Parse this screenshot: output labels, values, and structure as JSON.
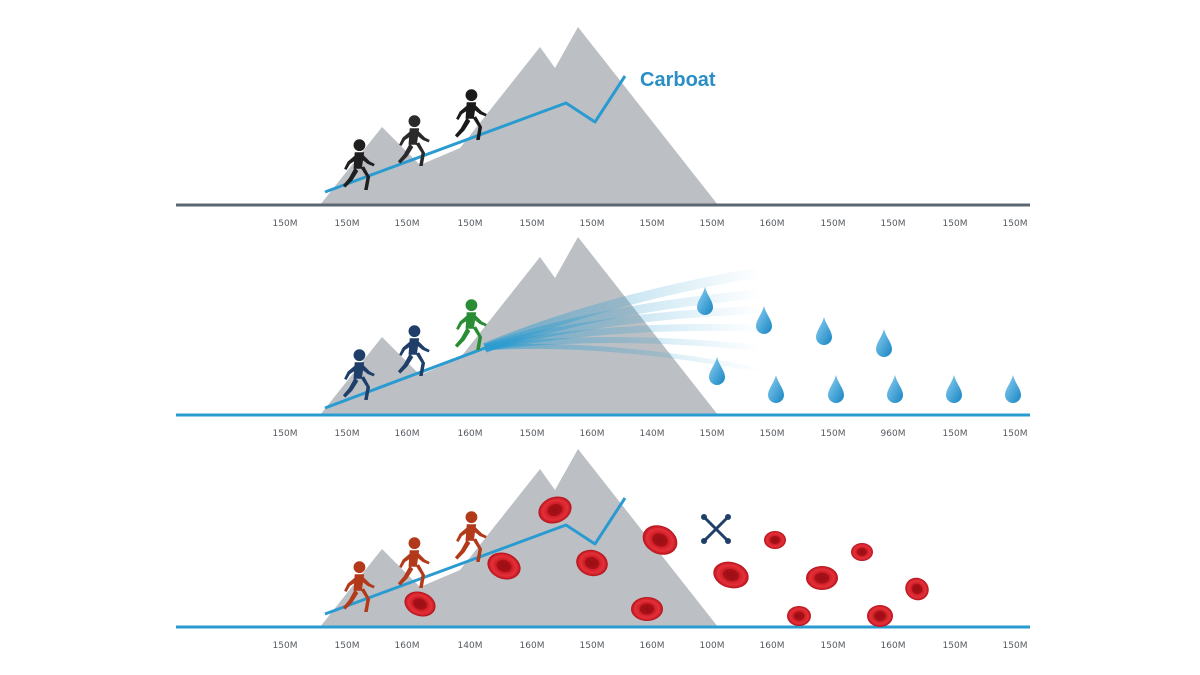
{
  "panels": [
    {
      "id": "carbohydrate",
      "label": "Carboat",
      "runner_colors": [
        "#1f1f1f",
        "#2a2a2a",
        "#1a1a1a"
      ],
      "baseline_color": "#5b6770",
      "tick_labels": [
        "150M",
        "150M",
        "150M",
        "150M",
        "150M",
        "150M",
        "150M",
        "150M",
        "160M",
        "150M",
        "150M",
        "150M",
        "150M"
      ],
      "graphic": "line"
    },
    {
      "id": "hydration",
      "label": "",
      "runner_colors": [
        "#1f3f6a",
        "#1f3f6a",
        "#2a8c34"
      ],
      "baseline_color": "#2a9bd0",
      "tick_labels": [
        "150M",
        "150M",
        "160M",
        "160M",
        "150M",
        "160M",
        "140M",
        "150M",
        "150M",
        "150M",
        "960M",
        "150M",
        "150M"
      ],
      "graphic": "droplets"
    },
    {
      "id": "blood",
      "label": "",
      "runner_colors": [
        "#b23a1a",
        "#b23a1a",
        "#b23a1a"
      ],
      "baseline_color": "#2a9bd0",
      "tick_labels": [
        "150M",
        "150M",
        "160M",
        "140M",
        "160M",
        "150M",
        "160M",
        "100M",
        "160M",
        "150M",
        "160M",
        "150M",
        "150M"
      ],
      "graphic": "blood-cells"
    }
  ],
  "colors": {
    "mountain": "#bcc0c4",
    "line": "#2a9bd0",
    "droplet": "#2e9fd6",
    "blood_cell": "#d01d24",
    "cross_icon": "#1f3f6a"
  }
}
